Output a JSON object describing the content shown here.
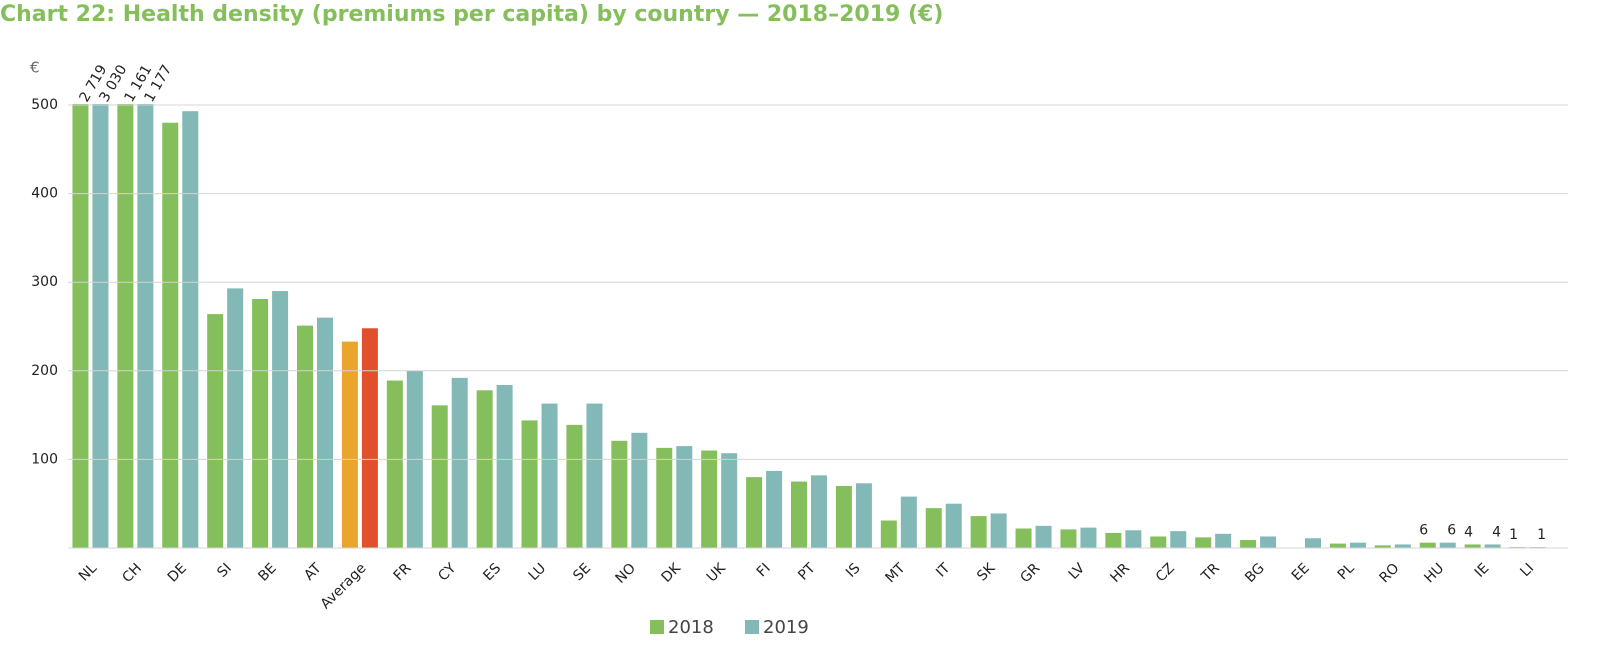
{
  "chart_data": {
    "type": "bar",
    "title": "Chart 22: Health density (premiums per capita) by country — 2018–2019 (€)",
    "y_label": "€",
    "categories": [
      "NL",
      "CH",
      "DE",
      "SI",
      "BE",
      "AT",
      "Average",
      "FR",
      "CY",
      "ES",
      "LU",
      "SE",
      "NO",
      "DK",
      "UK",
      "FI",
      "PT",
      "IS",
      "MT",
      "IT",
      "SK",
      "GR",
      "LV",
      "HR",
      "CZ",
      "TR",
      "BG",
      "EE",
      "PL",
      "RO",
      "HU",
      "IE",
      "LI"
    ],
    "series": [
      {
        "name": "2018",
        "color": "#84bf5c",
        "colors": [
          "#84bf5c",
          "#84bf5c",
          "#84bf5c",
          "#84bf5c",
          "#84bf5c",
          "#84bf5c",
          "#eaa62c",
          "#84bf5c",
          "#84bf5c",
          "#84bf5c",
          "#84bf5c",
          "#84bf5c",
          "#84bf5c",
          "#84bf5c",
          "#84bf5c",
          "#84bf5c",
          "#84bf5c",
          "#84bf5c",
          "#84bf5c",
          "#84bf5c",
          "#84bf5c",
          "#84bf5c",
          "#84bf5c",
          "#84bf5c",
          "#84bf5c",
          "#84bf5c",
          "#84bf5c",
          "#84bf5c",
          "#84bf5c",
          "#84bf5c",
          "#84bf5c",
          "#84bf5c",
          "#84bf5c"
        ],
        "values": [
          2719,
          1161,
          480,
          264,
          281,
          251,
          233,
          189,
          161,
          178,
          144,
          139,
          121,
          113,
          110,
          80,
          75,
          70,
          31,
          45,
          36,
          22,
          21,
          17,
          13,
          12,
          9,
          null,
          5,
          3,
          6,
          4,
          1
        ],
        "value_labels": [
          "2 719",
          "1 161",
          null,
          null,
          null,
          null,
          null,
          null,
          null,
          null,
          null,
          null,
          null,
          null,
          null,
          null,
          null,
          null,
          null,
          null,
          null,
          null,
          null,
          null,
          null,
          null,
          null,
          null,
          null,
          null,
          "6",
          "4",
          "1"
        ]
      },
      {
        "name": "2019",
        "color": "#82b8b5",
        "colors": [
          "#82b8b5",
          "#82b8b5",
          "#82b8b5",
          "#82b8b5",
          "#82b8b5",
          "#82b8b5",
          "#e0502c",
          "#82b8b5",
          "#82b8b5",
          "#82b8b5",
          "#82b8b5",
          "#82b8b5",
          "#82b8b5",
          "#82b8b5",
          "#82b8b5",
          "#82b8b5",
          "#82b8b5",
          "#82b8b5",
          "#82b8b5",
          "#82b8b5",
          "#82b8b5",
          "#82b8b5",
          "#82b8b5",
          "#82b8b5",
          "#82b8b5",
          "#82b8b5",
          "#82b8b5",
          "#82b8b5",
          "#82b8b5",
          "#82b8b5",
          "#82b8b5",
          "#82b8b5",
          "#82b8b5"
        ],
        "values": [
          3030,
          1177,
          493,
          293,
          290,
          260,
          248,
          200,
          192,
          184,
          163,
          163,
          130,
          115,
          107,
          87,
          82,
          73,
          58,
          50,
          39,
          25,
          23,
          20,
          19,
          16,
          13,
          11,
          6,
          4,
          6,
          4,
          1
        ],
        "value_labels": [
          "3 030",
          "1 177",
          null,
          null,
          null,
          null,
          null,
          null,
          null,
          null,
          null,
          null,
          null,
          null,
          null,
          null,
          null,
          null,
          null,
          null,
          null,
          null,
          null,
          null,
          null,
          null,
          null,
          null,
          null,
          null,
          "6",
          "4",
          "1"
        ]
      }
    ],
    "ylim": [
      0,
      500
    ],
    "yticks": [
      100,
      200,
      300,
      400,
      500
    ],
    "grid": true
  }
}
